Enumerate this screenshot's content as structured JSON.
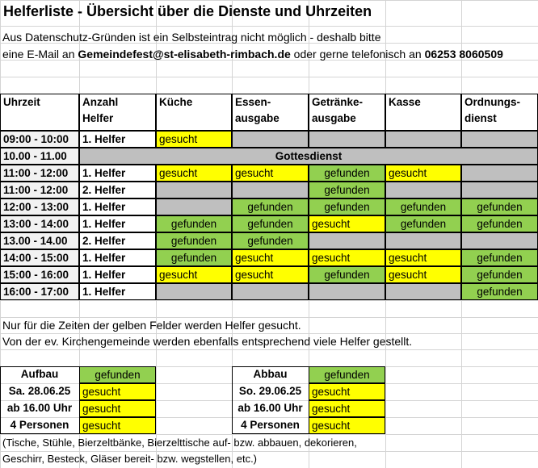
{
  "title": "Helferliste - Übersicht über die Dienste und Uhrzeiten",
  "intro": {
    "line1": "Aus Datenschutz-Gründen ist ein Selbsteintrag nicht möglich  - deshalb bitte",
    "line2_prefix": "eine E-Mail an ",
    "email": "Gemeindefest@st-elisabeth-rimbach.de",
    "line2_middle": " oder gerne telefonisch an ",
    "phone": "06253 8060509"
  },
  "table": {
    "headers": {
      "uhrzeit": "Uhrzeit",
      "anzahl_line1": "Anzahl",
      "anzahl_line2": "Helfer",
      "kueche": "Küche",
      "essen_line1": "Essen-",
      "essen_line2": "ausgabe",
      "getraenke_line1": "Getränke-",
      "getraenke_line2": "ausgabe",
      "kasse": "Kasse",
      "ordnung_line1": "Ordnungs-",
      "ordnung_line2": "dienst"
    },
    "gottesdienst_time": "10.00 - 11.00",
    "gottesdienst_label": "Gottesdienst",
    "rows": [
      {
        "time": "09:00 - 10:00",
        "helper": "1. Helfer",
        "cells": [
          "gesucht",
          "",
          "",
          "",
          ""
        ]
      },
      {
        "time": "11:00 - 12:00",
        "helper": "1. Helfer",
        "cells": [
          "gesucht",
          "gesucht",
          "gefunden",
          "gesucht",
          ""
        ]
      },
      {
        "time": "11:00 - 12:00",
        "helper": "2. Helfer",
        "cells": [
          "",
          "",
          "gefunden",
          "",
          ""
        ]
      },
      {
        "time": "12:00 - 13:00",
        "helper": "1. Helfer",
        "cells": [
          "",
          "gefunden",
          "gefunden",
          "gefunden",
          "gefunden"
        ]
      },
      {
        "time": "13:00 - 14:00",
        "helper": "1. Helfer",
        "cells": [
          "gefunden",
          "gefunden",
          "gesucht",
          "gefunden",
          "gefunden"
        ]
      },
      {
        "time": "13.00 - 14.00",
        "helper": "2. Helfer",
        "cells": [
          "gefunden",
          "gefunden",
          "",
          "",
          ""
        ]
      },
      {
        "time": "14:00 - 15:00",
        "helper": "1. Helfer",
        "cells": [
          "gefunden",
          "gesucht",
          "gesucht",
          "gesucht",
          "gefunden"
        ]
      },
      {
        "time": "15:00 - 16:00",
        "helper": "1. Helfer",
        "cells": [
          "gesucht",
          "gesucht",
          "gefunden",
          "gesucht",
          "gefunden"
        ]
      },
      {
        "time": "16:00 - 17:00",
        "helper": "1. Helfer",
        "cells": [
          "",
          "",
          "",
          "",
          "gefunden"
        ]
      }
    ]
  },
  "notes": {
    "line1": "Nur für die Zeiten der gelben Felder werden Helfer gesucht.",
    "line2": "Von der ev. Kirchengemeinde werden ebenfalls entsprechend viele Helfer gestellt."
  },
  "aufbau": {
    "labels": [
      "Aufbau",
      "Sa. 28.06.25",
      "ab 16.00 Uhr",
      "4 Personen"
    ],
    "values": [
      "gefunden",
      "gesucht",
      "gesucht",
      "gesucht"
    ]
  },
  "abbau": {
    "labels": [
      "Abbau",
      "So. 29.06.25",
      "ab 16.00 Uhr",
      "4 Personen"
    ],
    "values": [
      "gefunden",
      "gesucht",
      "gesucht",
      "gesucht"
    ]
  },
  "footer": {
    "line1": "(Tische, Stühle, Bierzeltbänke, Bierzelttische auf- bzw. abbauen, dekorieren,",
    "line2": "Geschirr, Besteck, Gläser bereit- bzw. wegstellen, etc.)"
  },
  "colors": {
    "gesucht": "#ffff00",
    "gefunden": "#92d050",
    "blocked": "#bfbfbf"
  }
}
